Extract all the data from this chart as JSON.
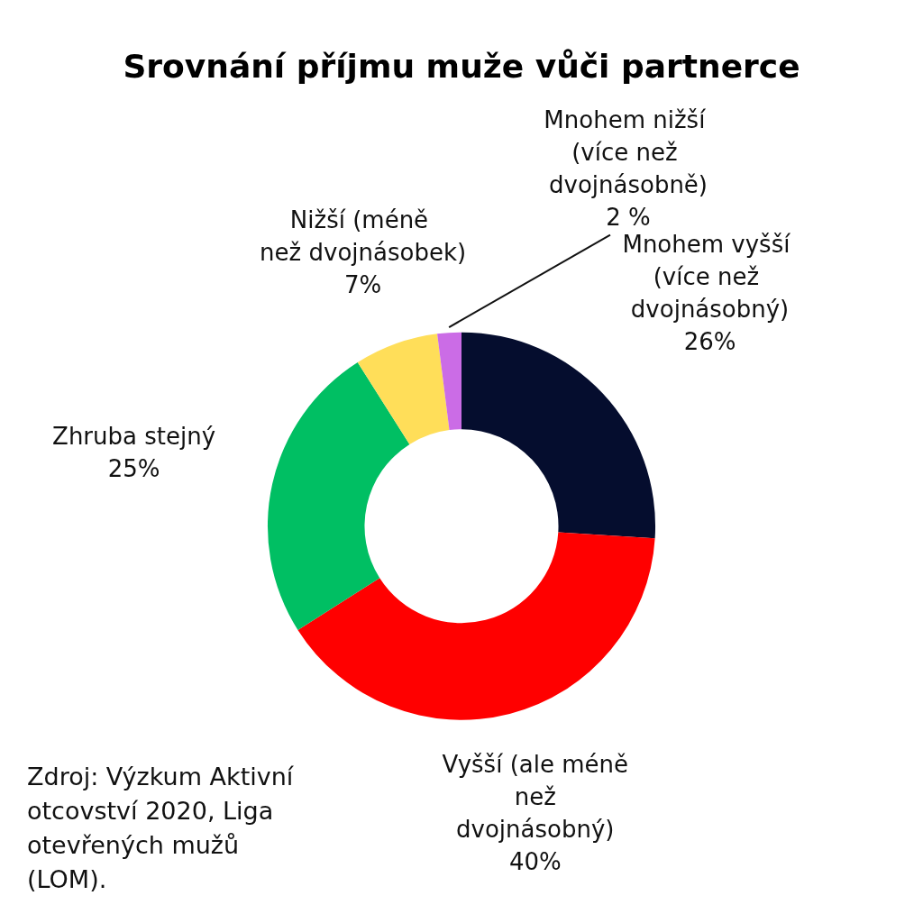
{
  "chart_data": {
    "type": "donut",
    "title": "Srovnání příjmu muže vůči partnerce",
    "categories": [
      "Mnohem vyšší (více než dvojnásobný)",
      "Vyšší (ale méně než dvojnásobný)",
      "Zhruba stejný",
      "Nižší (méně než dvojnásobek)",
      "Mnohem nižší (více než dvojnásobně)"
    ],
    "values": [
      26,
      40,
      25,
      7,
      2
    ],
    "value_labels": [
      "26%",
      "40%",
      "25%",
      "7%",
      "2 %"
    ],
    "colors": [
      "#050d2e",
      "#ff0000",
      "#00bf63",
      "#ffde59",
      "#cb6ce6"
    ],
    "legend": false,
    "annotations": [
      "Zdroj: Výzkum Aktivní otcovství 2020, Liga otevřených mužů (LOM)."
    ]
  }
}
